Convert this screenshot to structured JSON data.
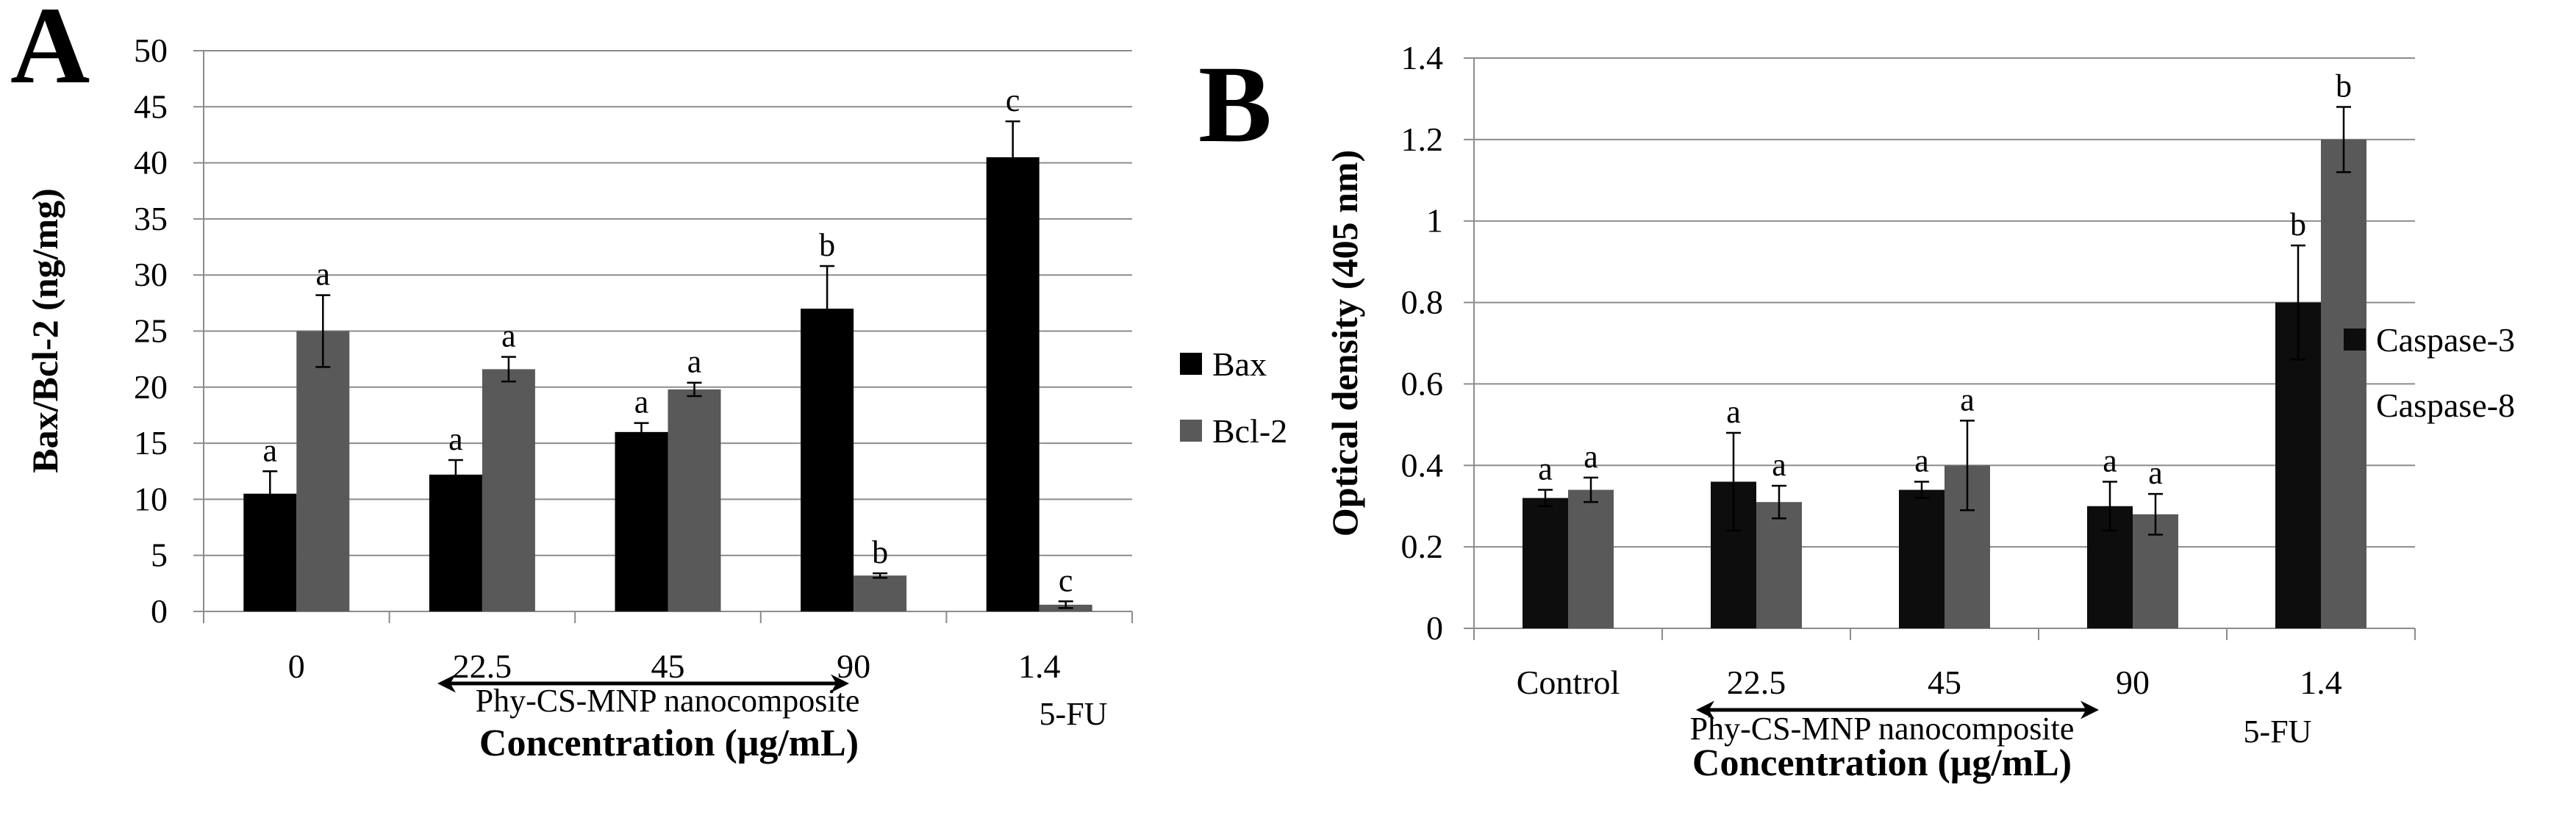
{
  "chart_data": [
    {
      "panel": "A",
      "type": "bar",
      "ylabel": "Bax/Bcl-2 (ng/mg)",
      "xlabel": "Concentration (μg/mL)",
      "group_label": "Phy-CS-MNP nanocomposite",
      "control_label": "5-FU",
      "ylim": [
        0,
        50
      ],
      "yticks": [
        "0",
        "5",
        "10",
        "15",
        "20",
        "25",
        "30",
        "35",
        "40",
        "45",
        "50"
      ],
      "categories": [
        "0",
        "22.5",
        "45",
        "90",
        "1.4"
      ],
      "series": [
        {
          "name": "Bax",
          "color": "#000000",
          "values": [
            10.5,
            12.2,
            16.0,
            27.0,
            40.5
          ],
          "errors": [
            2.0,
            1.3,
            0.8,
            3.8,
            3.2
          ],
          "letters": [
            "a",
            "a",
            "a",
            "b",
            "c"
          ]
        },
        {
          "name": "Bcl-2",
          "color": "#595959",
          "values": [
            25.0,
            21.6,
            19.8,
            3.2,
            0.6
          ],
          "errors": [
            3.2,
            1.1,
            0.6,
            0.2,
            0.3
          ],
          "letters": [
            "a",
            "a",
            "a",
            "b",
            "c"
          ]
        }
      ]
    },
    {
      "panel": "B",
      "type": "bar",
      "ylabel": "Optical density (405 nm)",
      "xlabel": "Concentration (μg/mL)",
      "group_label": "Phy-CS-MNP nanocomposite",
      "control_label": "5-FU",
      "ylim": [
        0,
        1.4
      ],
      "yticks": [
        "0",
        "0.2",
        "0.4",
        "0.6",
        "0.8",
        "1",
        "1.2",
        "1.4"
      ],
      "categories": [
        "Control",
        "22.5",
        "45",
        "90",
        "1.4"
      ],
      "series": [
        {
          "name": "Caspase-3",
          "color": "#0d0d0d",
          "values": [
            0.32,
            0.36,
            0.34,
            0.3,
            0.8
          ],
          "errors": [
            0.02,
            0.12,
            0.02,
            0.06,
            0.14
          ],
          "letters": [
            "a",
            "a",
            "a",
            "a",
            "b"
          ]
        },
        {
          "name": "Caspase-8",
          "color": "#595959",
          "values": [
            0.34,
            0.31,
            0.4,
            0.28,
            1.2
          ],
          "errors": [
            0.03,
            0.04,
            0.11,
            0.05,
            0.08
          ],
          "letters": [
            "a",
            "a",
            "a",
            "a",
            "b"
          ]
        }
      ]
    }
  ]
}
